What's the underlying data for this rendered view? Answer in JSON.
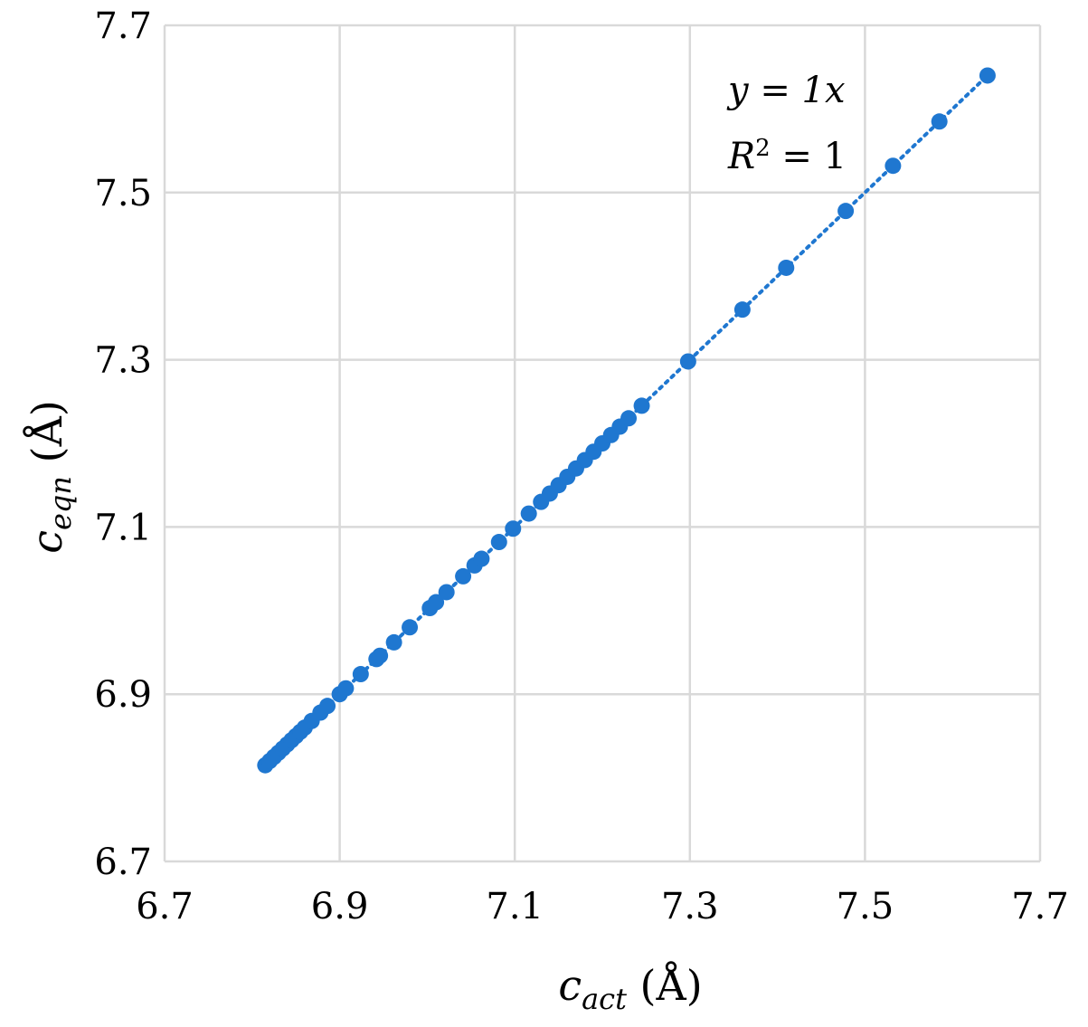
{
  "chart_data": {
    "type": "scatter",
    "xlabel": {
      "var": "c",
      "sub": "act",
      "unit": " (Å)"
    },
    "ylabel": {
      "var": "c",
      "sub": "eqn",
      "unit": " (Å)"
    },
    "xlim": [
      6.7,
      7.7
    ],
    "ylim": [
      6.7,
      7.7
    ],
    "xticks": [
      "6.7",
      "6.9",
      "7.1",
      "7.3",
      "7.5",
      "7.7"
    ],
    "yticks": [
      "6.7",
      "6.9",
      "7.1",
      "7.3",
      "7.5",
      "7.7"
    ],
    "grid": true,
    "marker_color": "#1f77d0",
    "trendline": {
      "style": "dotted",
      "x": [
        6.815,
        7.64
      ],
      "y": [
        6.815,
        7.64
      ]
    },
    "annotations": [
      {
        "id": "equation",
        "text": "y = 1x"
      },
      {
        "id": "r-squared",
        "var": "R",
        "sup": "2",
        "rest": " = 1"
      }
    ],
    "series": [
      {
        "x": [
          6.815,
          6.82,
          6.825,
          6.83,
          6.835,
          6.84,
          6.845,
          6.85,
          6.855,
          6.86,
          6.868,
          6.878,
          6.886,
          6.9,
          6.907,
          6.924,
          6.942,
          6.946,
          6.962,
          6.98,
          7.003,
          7.01,
          7.022,
          7.041,
          7.054,
          7.062,
          7.082,
          7.098,
          7.116,
          7.13,
          7.14,
          7.15,
          7.16,
          7.17,
          7.18,
          7.19,
          7.2,
          7.21,
          7.22,
          7.23,
          7.245,
          7.298,
          7.36,
          7.41,
          7.478,
          7.532,
          7.585,
          7.64
        ],
        "y": [
          6.815,
          6.82,
          6.825,
          6.83,
          6.835,
          6.84,
          6.845,
          6.85,
          6.855,
          6.86,
          6.868,
          6.878,
          6.886,
          6.9,
          6.907,
          6.924,
          6.942,
          6.946,
          6.962,
          6.98,
          7.003,
          7.01,
          7.022,
          7.041,
          7.054,
          7.062,
          7.082,
          7.098,
          7.116,
          7.13,
          7.14,
          7.15,
          7.16,
          7.17,
          7.18,
          7.19,
          7.2,
          7.21,
          7.22,
          7.23,
          7.245,
          7.298,
          7.36,
          7.41,
          7.478,
          7.532,
          7.585,
          7.64
        ]
      }
    ]
  }
}
